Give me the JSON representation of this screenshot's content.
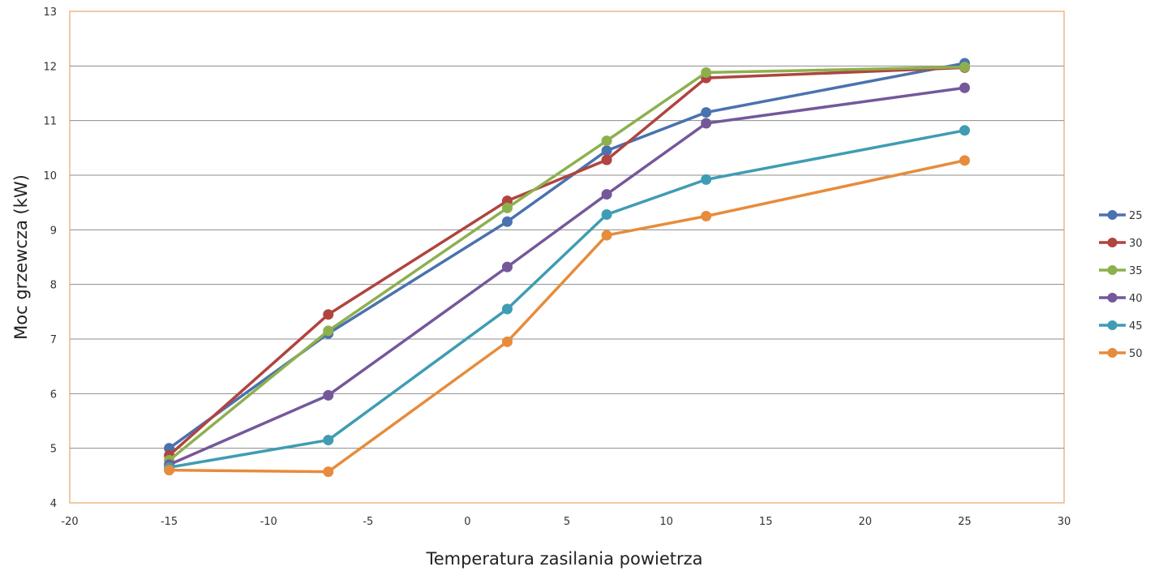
{
  "chart_data": {
    "type": "line",
    "title": "",
    "xlabel": "Temperatura zasilania powietrza",
    "ylabel": "Moc grzewcza (kW)",
    "xlim": [
      -20,
      30
    ],
    "ylim": [
      4,
      13
    ],
    "xticks": [
      -20,
      -15,
      -10,
      -5,
      0,
      5,
      10,
      15,
      20,
      25,
      30
    ],
    "yticks": [
      4,
      5,
      6,
      7,
      8,
      9,
      10,
      11,
      12,
      13
    ],
    "grid": "horizontal",
    "legend_position": "right",
    "x": [
      -15,
      -7,
      2,
      7,
      12,
      25
    ],
    "series": [
      {
        "name": "25",
        "color": "#4a72ae",
        "values": [
          5.0,
          7.1,
          9.15,
          10.45,
          11.15,
          12.05
        ]
      },
      {
        "name": "30",
        "color": "#b0443f",
        "values": [
          4.87,
          7.45,
          9.53,
          10.28,
          11.78,
          11.97
        ]
      },
      {
        "name": "35",
        "color": "#8db04e",
        "values": [
          4.78,
          7.15,
          9.4,
          10.63,
          11.88,
          11.98
        ]
      },
      {
        "name": "40",
        "color": "#74589a",
        "values": [
          4.7,
          5.97,
          8.32,
          9.65,
          10.95,
          11.6
        ]
      },
      {
        "name": "45",
        "color": "#3f9cb3",
        "values": [
          4.65,
          5.15,
          7.55,
          9.28,
          9.92,
          10.82
        ]
      },
      {
        "name": "50",
        "color": "#e68c3c",
        "values": [
          4.6,
          4.57,
          6.95,
          8.9,
          9.25,
          10.27
        ]
      }
    ]
  }
}
